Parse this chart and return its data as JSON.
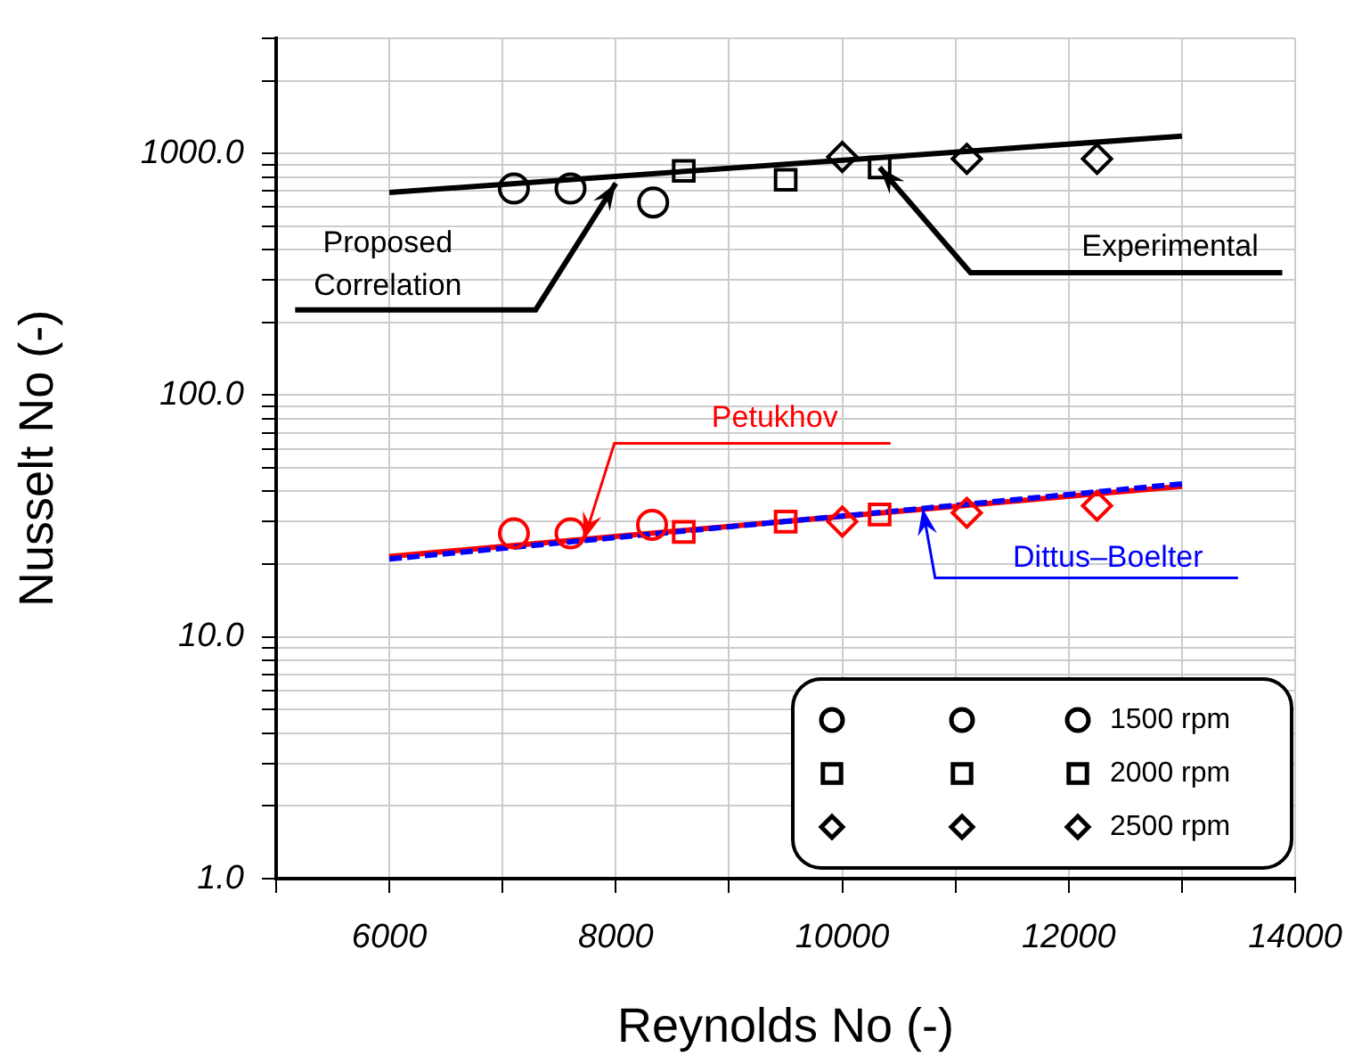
{
  "chart_data": {
    "type": "scatter",
    "xlabel": "Reynolds No (-)",
    "ylabel": "Nusselt No (-)",
    "xlim": [
      5000,
      14000
    ],
    "xticks": [
      {
        "value": 5000,
        "label": null
      },
      6000,
      {
        "value": 7000,
        "label": null
      },
      8000,
      {
        "value": 9000,
        "label": null
      },
      10000,
      {
        "value": 11000,
        "label": null
      },
      12000,
      {
        "value": 13000,
        "label": null
      },
      14000
    ],
    "ylim": [
      1,
      3000
    ],
    "yticks": [
      {
        "value": 1,
        "label": "1.0"
      },
      {
        "value": 2,
        "label": null
      },
      {
        "value": 3,
        "label": null
      },
      {
        "value": 4,
        "label": null
      },
      {
        "value": 5,
        "label": null
      },
      {
        "value": 6,
        "label": null
      },
      {
        "value": 7,
        "label": null
      },
      {
        "value": 8,
        "label": null
      },
      {
        "value": 9,
        "label": null
      },
      {
        "value": 10,
        "label": "10.0"
      },
      {
        "value": 20,
        "label": null
      },
      {
        "value": 30,
        "label": null
      },
      {
        "value": 40,
        "label": null
      },
      {
        "value": 50,
        "label": null
      },
      {
        "value": 60,
        "label": null
      },
      {
        "value": 70,
        "label": null
      },
      {
        "value": 80,
        "label": null
      },
      {
        "value": 90,
        "label": null
      },
      {
        "value": 100,
        "label": "100.0"
      },
      {
        "value": 200,
        "label": null
      },
      {
        "value": 300,
        "label": null
      },
      {
        "value": 400,
        "label": null
      },
      {
        "value": 500,
        "label": null
      },
      {
        "value": 600,
        "label": null
      },
      {
        "value": 700,
        "label": null
      },
      {
        "value": 800,
        "label": null
      },
      {
        "value": 900,
        "label": null
      },
      {
        "value": 1000,
        "label": "1000.0"
      },
      {
        "value": 2000,
        "label": null
      },
      {
        "value": 3000,
        "label": null
      }
    ],
    "log": "y",
    "grid": true,
    "legend": "bottom right",
    "series": [
      {
        "type": "line",
        "color": "#000000",
        "marker": "none",
        "line_style": "solid",
        "x": [
          6000,
          13000
        ],
        "values": [
          690,
          1180
        ]
      },
      {
        "type": "line",
        "color": "#0000ff",
        "marker": "none",
        "line_style": "dashed",
        "x": [
          6000,
          13000
        ],
        "values": [
          21,
          43
        ]
      },
      {
        "type": "line",
        "color": "#ff0000",
        "marker": "none",
        "line_style": "solid",
        "x": [
          6000,
          13000
        ],
        "values": [
          21.5,
          42
        ]
      },
      {
        "name": "1500 rpm",
        "color": "#000000",
        "marker": "circle",
        "x": [
          7100,
          7600,
          8330
        ],
        "values": [
          716,
          716,
          627
        ]
      },
      {
        "name": "2000 rpm",
        "color": "#000000",
        "marker": "square",
        "x": [
          8600,
          9500,
          10330
        ],
        "values": [
          847,
          778,
          875
        ]
      },
      {
        "name": "2500 rpm",
        "color": "#000000",
        "marker": "diamond",
        "x": [
          10000,
          11100,
          12250
        ],
        "values": [
          968,
          950,
          950
        ]
      },
      {
        "color": "#ff0000",
        "marker": "circle",
        "x": [
          7100,
          7600,
          8320
        ],
        "values": [
          26.8,
          26.8,
          29.1
        ]
      },
      {
        "color": "#ff0000",
        "marker": "square",
        "x": [
          8600,
          9500,
          10330
        ],
        "values": [
          27.2,
          30,
          32.1
        ]
      },
      {
        "color": "#ff0000",
        "marker": "diamond",
        "x": [
          10000,
          11100,
          12250
        ],
        "values": [
          30,
          32.6,
          34.9
        ]
      }
    ],
    "annotations": [
      {
        "text": "Proposed Correlation",
        "x": 8000,
        "y": 753
      },
      {
        "text": "Experimental",
        "x": 10330,
        "y": 875
      },
      {
        "text": "Petukhov",
        "x": 7720,
        "y": 25.3
      },
      {
        "text": "Dittus–Boelter",
        "x": 10710,
        "y": 34
      }
    ]
  }
}
